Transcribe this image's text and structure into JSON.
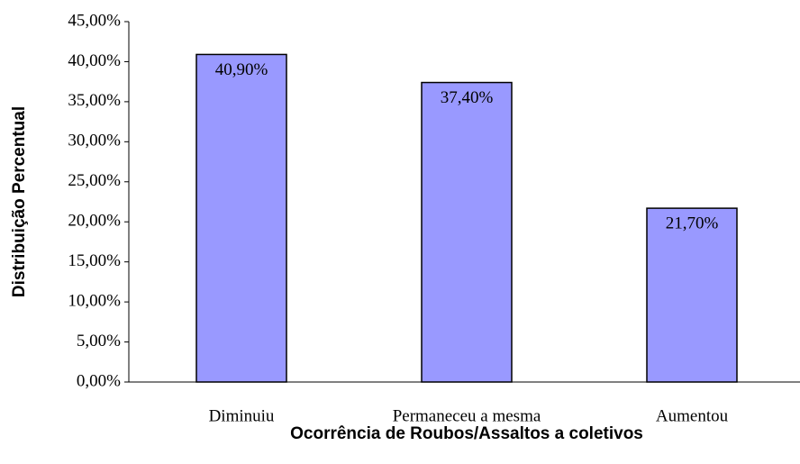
{
  "chart_data": {
    "type": "bar",
    "x_label": "Ocorrência de Roubos/Assaltos a coletivos",
    "y_label": "Distribuição Percentual",
    "categories": [
      "Diminuiu",
      "Permaneceu a mesma",
      "Aumentou"
    ],
    "values": [
      40.9,
      37.4,
      21.7
    ],
    "value_labels": [
      "40,90%",
      "37,40%",
      "21,70%"
    ],
    "color": "#9999ff",
    "ylim": [
      0,
      45
    ],
    "yticks": [
      {
        "value": 0,
        "label": "0,00%"
      },
      {
        "value": 5,
        "label": "5,00%"
      },
      {
        "value": 10,
        "label": "10,00%"
      },
      {
        "value": 15,
        "label": "15,00%"
      },
      {
        "value": 20,
        "label": "20,00%"
      },
      {
        "value": 25,
        "label": "25,00%"
      },
      {
        "value": 30,
        "label": "30,00%"
      },
      {
        "value": 35,
        "label": "35,00%"
      },
      {
        "value": 40,
        "label": "40,00%"
      },
      {
        "value": 45,
        "label": "45,00%"
      }
    ],
    "grid": false
  }
}
